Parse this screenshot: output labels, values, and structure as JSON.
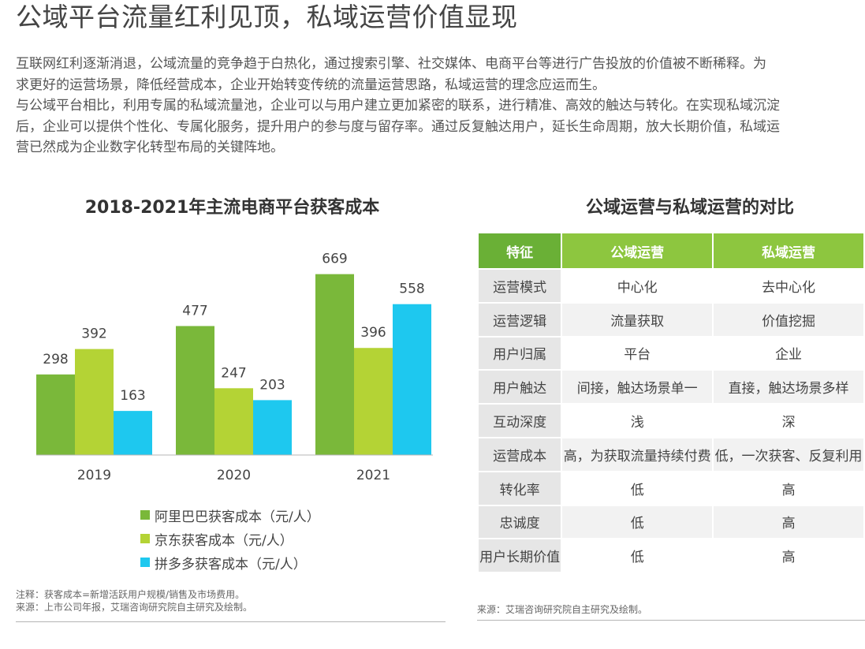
{
  "page": {
    "title": "公域平台流量红利见顶，私域运营价值显现",
    "paragraphs": [
      "互联网红利逐渐消退，公域流量的竞争趋于白热化，通过搜索引擎、社交媒体、电商平台等进行广告投放的价值被不断稀释。为",
      "求更好的运营场景，降低经营成本，企业开始转变传统的流量运营思路，私域运营的理念应运而生。",
      "与公域平台相比，利用专属的私域流量池，企业可以与用户建立更加紧密的联系，进行精准、高效的触达与转化。在实现私域沉淀",
      "后，企业可以提供个性化、专属化服务，提升用户的参与度与留存率。通过反复触达用户，延长生命周期，放大长期价值，私域运",
      "营已然成为企业数字化转型布局的关键阵地。"
    ]
  },
  "chart_data": {
    "type": "bar",
    "title": "2018-2021年主流电商平台获客成本",
    "categories": [
      "2019",
      "2020",
      "2021"
    ],
    "series": [
      {
        "name": "阿里巴巴获客成本（元/人）",
        "values": [
          298,
          477,
          669
        ],
        "color": "#7ab83a"
      },
      {
        "name": "京东获客成本（元/人）",
        "values": [
          392,
          247,
          396
        ],
        "color": "#b4d335"
      },
      {
        "name": "拼多多获客成本（元/人）",
        "values": [
          163,
          203,
          558
        ],
        "color": "#1ec8ef"
      }
    ],
    "ylim": [
      0,
      700
    ],
    "grid": false,
    "legend_position": "bottom",
    "footnote": [
      "注释：获客成本=新增活跃用户规模/销售及市场费用。",
      "来源：上市公司年报，艾瑞咨询研究院自主研究及绘制。"
    ]
  },
  "comparison": {
    "title": "公域运营与私域运营的对比",
    "headers": [
      "特征",
      "公域运营",
      "私域运营"
    ],
    "rows": [
      [
        "运营模式",
        "中心化",
        "去中心化"
      ],
      [
        "运营逻辑",
        "流量获取",
        "价值挖掘"
      ],
      [
        "用户归属",
        "平台",
        "企业"
      ],
      [
        "用户触达",
        "间接，触达场景单一",
        "直接，触达场景多样"
      ],
      [
        "互动深度",
        "浅",
        "深"
      ],
      [
        "运营成本",
        "高，为获取流量持续付费",
        "低，一次获客、反复利用"
      ],
      [
        "转化率",
        "低",
        "高"
      ],
      [
        "忠诚度",
        "低",
        "高"
      ],
      [
        "用户长期价值",
        "低",
        "高"
      ]
    ],
    "source": "来源：艾瑞咨询研究院自主研究及绘制。"
  }
}
